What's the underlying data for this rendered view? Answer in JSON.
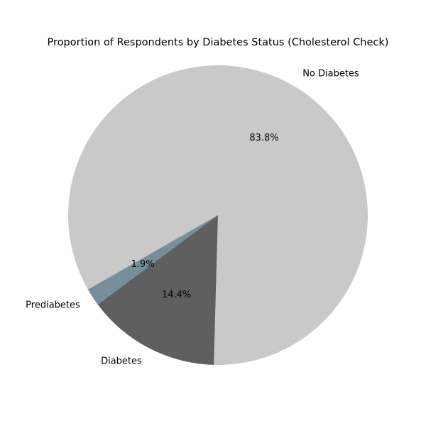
{
  "chart_data": {
    "type": "pie",
    "title": "Proportion of Respondents by Diabetes Status (Cholesterol Check)",
    "labels": [
      "No Diabetes",
      "Prediabetes",
      "Diabetes"
    ],
    "values": [
      83.8,
      1.9,
      14.4
    ],
    "percent_labels": [
      "83.8%",
      "1.9%",
      "14.4%"
    ],
    "colors": [
      "#c9c9c9",
      "#778f9c",
      "#5f5f5f"
    ],
    "legend": "none"
  }
}
